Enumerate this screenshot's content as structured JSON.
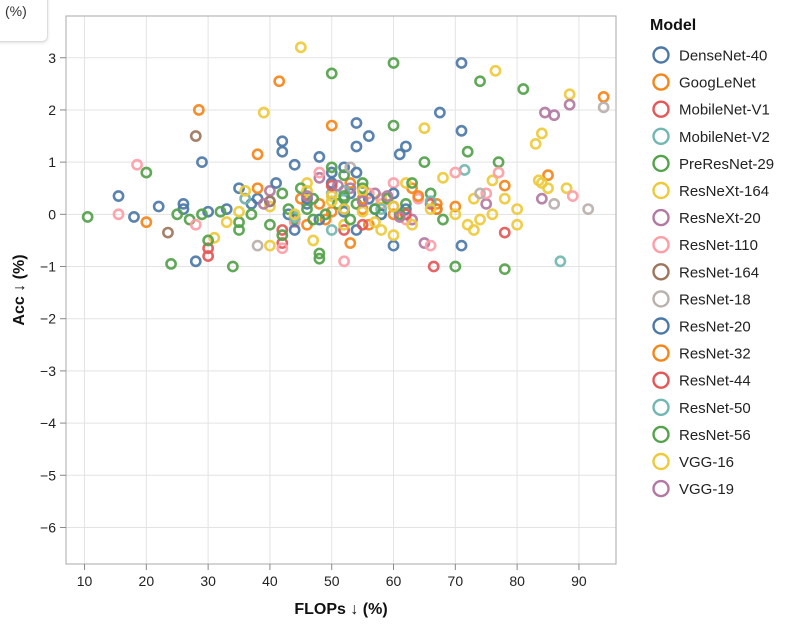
{
  "tooltip": {
    "text": "(%)"
  },
  "colors": {
    "blue": "#4c78a8",
    "orange": "#f58518",
    "red": "#e45756",
    "teal": "#72b7b2",
    "green": "#54a24b",
    "yellow": "#eeca3b",
    "purple": "#b279a2",
    "pink": "#ff9da6",
    "brown": "#9d755d",
    "gray": "#bab0ac"
  },
  "chart_data": {
    "type": "scatter",
    "title": "",
    "xlabel": "FLOPs ↓ (%)",
    "ylabel": "Acc ↓ (%)",
    "xlim": [
      7,
      96
    ],
    "ylim": [
      -6.7,
      3.8
    ],
    "x_ticks": [
      10,
      20,
      30,
      40,
      50,
      60,
      70,
      80,
      90
    ],
    "y_ticks": [
      3,
      2,
      1,
      0,
      -1,
      -2,
      -3,
      -4,
      -5,
      -6
    ],
    "y_tick_labels": [
      "3",
      "2",
      "1",
      "0",
      "−1",
      "−2",
      "−3",
      "−4",
      "−5",
      "−6"
    ],
    "grid": true,
    "legend": {
      "title": "Model",
      "placement": "right"
    },
    "series": [
      {
        "name": "DenseNet-40",
        "color": "#4c78a8",
        "points": [
          [
            15.5,
            0.35
          ],
          [
            22,
            0.15
          ],
          [
            26,
            0.1
          ],
          [
            29,
            1.0
          ],
          [
            30,
            0.05
          ],
          [
            35,
            0.5
          ],
          [
            38,
            0.3
          ],
          [
            42,
            1.4
          ],
          [
            42,
            1.2
          ],
          [
            44,
            0.95
          ],
          [
            48,
            1.1
          ],
          [
            50,
            0.8
          ],
          [
            52,
            0.9
          ],
          [
            53,
            0.4
          ],
          [
            54,
            1.75
          ],
          [
            54,
            1.3
          ],
          [
            56,
            1.5
          ],
          [
            60,
            -0.6
          ],
          [
            61,
            1.15
          ],
          [
            62,
            1.3
          ],
          [
            67.5,
            1.95
          ],
          [
            71,
            2.9
          ],
          [
            71,
            1.6
          ],
          [
            52,
            0.05
          ],
          [
            46,
            0.2
          ],
          [
            57,
            0.1
          ]
        ]
      },
      {
        "name": "GoogLeNet",
        "color": "#f58518",
        "points": [
          [
            20,
            -0.15
          ],
          [
            28.5,
            2.0
          ],
          [
            38,
            1.15
          ],
          [
            41.5,
            2.55
          ],
          [
            50,
            1.7
          ],
          [
            45,
            0.3
          ],
          [
            53,
            0.6
          ],
          [
            55,
            0.1
          ],
          [
            63,
            0.5
          ],
          [
            67,
            0.2
          ],
          [
            70,
            0.15
          ],
          [
            78,
            0.55
          ],
          [
            85,
            0.75
          ],
          [
            94,
            2.25
          ],
          [
            58,
            0.3
          ],
          [
            49,
            -0.1
          ]
        ]
      },
      {
        "name": "MobileNet-V1",
        "color": "#e45756",
        "points": [
          [
            30,
            -0.8
          ],
          [
            42,
            -0.55
          ],
          [
            52,
            -0.3
          ],
          [
            60,
            0.15
          ],
          [
            66.5,
            -1.0
          ],
          [
            78,
            -0.35
          ]
        ]
      },
      {
        "name": "MobileNet-V2",
        "color": "#72b7b2",
        "points": [
          [
            40,
            0.25
          ],
          [
            50,
            0.4
          ],
          [
            58,
            0.0
          ],
          [
            71.5,
            0.85
          ],
          [
            87,
            -0.9
          ]
        ]
      },
      {
        "name": "PreResNet-29",
        "color": "#54a24b",
        "points": [
          [
            10.5,
            -0.05
          ],
          [
            20,
            0.8
          ],
          [
            24,
            -0.95
          ],
          [
            27,
            -0.1
          ],
          [
            34,
            -1.0
          ],
          [
            35,
            -0.15
          ],
          [
            42,
            0.4
          ],
          [
            44,
            -0.1
          ],
          [
            48,
            -0.85
          ],
          [
            50,
            2.7
          ],
          [
            50,
            0.9
          ],
          [
            52,
            0.3
          ],
          [
            55,
            0.6
          ],
          [
            60,
            2.9
          ],
          [
            60,
            1.7
          ],
          [
            62,
            0.2
          ],
          [
            65,
            1.0
          ],
          [
            66,
            0.4
          ],
          [
            70,
            -1.0
          ],
          [
            72,
            1.2
          ],
          [
            74,
            2.55
          ],
          [
            77,
            1.0
          ],
          [
            78,
            -1.05
          ],
          [
            81,
            2.4
          ],
          [
            54,
            0.2
          ],
          [
            46,
            0.1
          ],
          [
            52,
            0.75
          ],
          [
            48,
            -0.75
          ]
        ]
      },
      {
        "name": "ResNeXt-164",
        "color": "#eeca3b",
        "points": [
          [
            31,
            -0.45
          ],
          [
            35,
            0.05
          ],
          [
            39,
            1.95
          ],
          [
            40,
            0.15
          ],
          [
            45,
            3.2
          ],
          [
            46,
            0.6
          ],
          [
            50,
            0.35
          ],
          [
            52,
            -0.2
          ],
          [
            55,
            0.05
          ],
          [
            58,
            0.3
          ],
          [
            60,
            -0.4
          ],
          [
            62,
            0.6
          ],
          [
            65,
            1.65
          ],
          [
            68,
            0.7
          ],
          [
            72,
            -0.2
          ],
          [
            73,
            0.3
          ],
          [
            76.5,
            2.75
          ],
          [
            76,
            0.0
          ],
          [
            80,
            0.1
          ],
          [
            80,
            -0.2
          ],
          [
            83,
            1.35
          ],
          [
            84,
            0.6
          ],
          [
            84,
            1.55
          ],
          [
            85,
            0.5
          ],
          [
            88,
            0.5
          ],
          [
            88.5,
            2.3
          ],
          [
            83.5,
            0.65
          ],
          [
            73,
            -0.3
          ],
          [
            76,
            0.65
          ]
        ]
      },
      {
        "name": "ResNeXt-20",
        "color": "#b279a2",
        "points": [
          [
            40,
            0.45
          ],
          [
            48,
            0.7
          ],
          [
            53,
            0.5
          ],
          [
            57,
            0.4
          ],
          [
            63,
            -0.1
          ],
          [
            65,
            -0.55
          ],
          [
            75,
            0.2
          ],
          [
            84,
            0.3
          ],
          [
            84.5,
            1.95
          ],
          [
            86,
            1.9
          ],
          [
            88.5,
            2.1
          ]
        ]
      },
      {
        "name": "ResNet-110",
        "color": "#ff9da6",
        "points": [
          [
            15.5,
            0.0
          ],
          [
            18.5,
            0.95
          ],
          [
            28,
            -0.2
          ],
          [
            36,
            0.3
          ],
          [
            42,
            -0.65
          ],
          [
            48,
            0.8
          ],
          [
            52,
            -0.9
          ],
          [
            56,
            0.4
          ],
          [
            60,
            0.6
          ],
          [
            62,
            -0.1
          ],
          [
            64,
            0.3
          ],
          [
            66,
            -0.6
          ],
          [
            70,
            0.8
          ],
          [
            75,
            0.4
          ],
          [
            77,
            0.8
          ],
          [
            89,
            0.35
          ],
          [
            44,
            -0.15
          ],
          [
            58,
            0.2
          ]
        ]
      },
      {
        "name": "ResNet-164",
        "color": "#9d755d",
        "points": [
          [
            23.5,
            -0.35
          ],
          [
            28,
            1.5
          ],
          [
            40,
            0.25
          ]
        ]
      },
      {
        "name": "ResNet-18",
        "color": "#bab0ac",
        "points": [
          [
            38,
            -0.6
          ],
          [
            53,
            0.9
          ],
          [
            74,
            0.4
          ],
          [
            86,
            0.2
          ],
          [
            91.5,
            0.1
          ],
          [
            94,
            2.05
          ]
        ]
      },
      {
        "name": "ResNet-20",
        "color": "#4c78a8",
        "points": [
          [
            18,
            -0.05
          ],
          [
            26,
            0.2
          ],
          [
            28,
            -0.9
          ],
          [
            33,
            0.1
          ],
          [
            37,
            0.2
          ],
          [
            41,
            0.6
          ],
          [
            43,
            0.0
          ],
          [
            46,
            0.3
          ],
          [
            48,
            -0.1
          ],
          [
            50,
            0.6
          ],
          [
            52,
            0.1
          ],
          [
            54,
            -0.3
          ],
          [
            56,
            0.3
          ],
          [
            58,
            0.0
          ],
          [
            60,
            0.4
          ],
          [
            62,
            0.1
          ],
          [
            67,
            0.1
          ],
          [
            71,
            -0.6
          ],
          [
            54,
            0.8
          ],
          [
            44,
            -0.3
          ]
        ]
      },
      {
        "name": "ResNet-32",
        "color": "#f58518",
        "points": [
          [
            38,
            0.5
          ],
          [
            46,
            -0.2
          ],
          [
            50,
            0.05
          ],
          [
            53,
            -0.55
          ],
          [
            55,
            0.3
          ],
          [
            60,
            0.0
          ],
          [
            64,
            0.35
          ],
          [
            67,
            0.1
          ],
          [
            48,
            0.2
          ],
          [
            56,
            -0.2
          ]
        ]
      },
      {
        "name": "ResNet-44",
        "color": "#e45756",
        "points": [
          [
            30,
            -0.65
          ],
          [
            42,
            -0.3
          ],
          [
            50,
            0.55
          ],
          [
            55,
            -0.2
          ],
          [
            62,
            0.0
          ],
          [
            66,
            0.2
          ]
        ]
      },
      {
        "name": "ResNet-50",
        "color": "#72b7b2",
        "points": [
          [
            36,
            0.3
          ],
          [
            44,
            -0.05
          ],
          [
            50,
            -0.3
          ],
          [
            52,
            0.45
          ],
          [
            58,
            0.1
          ],
          [
            66,
            0.25
          ]
        ]
      },
      {
        "name": "ResNet-56",
        "color": "#54a24b",
        "points": [
          [
            25,
            0.0
          ],
          [
            29,
            0.0
          ],
          [
            30,
            -0.5
          ],
          [
            32,
            0.05
          ],
          [
            35,
            -0.3
          ],
          [
            37,
            0.0
          ],
          [
            40,
            -0.2
          ],
          [
            43,
            0.1
          ],
          [
            45,
            0.5
          ],
          [
            47,
            -0.1
          ],
          [
            49,
            0.0
          ],
          [
            51,
            0.2
          ],
          [
            53,
            -0.1
          ],
          [
            55,
            0.5
          ],
          [
            57,
            0.1
          ],
          [
            59,
            0.3
          ],
          [
            61,
            0.0
          ],
          [
            63,
            0.6
          ],
          [
            68,
            -0.1
          ],
          [
            52,
            0.35
          ],
          [
            47,
            0.3
          ],
          [
            42,
            -0.4
          ]
        ]
      },
      {
        "name": "VGG-16",
        "color": "#eeca3b",
        "points": [
          [
            33,
            -0.15
          ],
          [
            36,
            0.45
          ],
          [
            40,
            -0.6
          ],
          [
            44,
            0.0
          ],
          [
            47,
            -0.5
          ],
          [
            50,
            0.25
          ],
          [
            52,
            0.1
          ],
          [
            55,
            0.45
          ],
          [
            57,
            -0.15
          ],
          [
            60,
            0.15
          ],
          [
            63,
            -0.2
          ],
          [
            66,
            0.1
          ],
          [
            70,
            0.0
          ],
          [
            74,
            -0.1
          ],
          [
            78,
            0.3
          ],
          [
            46,
            0.45
          ],
          [
            58,
            -0.3
          ]
        ]
      },
      {
        "name": "VGG-19",
        "color": "#b279a2",
        "points": [
          [
            39,
            0.2
          ],
          [
            46,
            0.35
          ],
          [
            51,
            0.55
          ],
          [
            55,
            0.25
          ],
          [
            59,
            0.35
          ],
          [
            61,
            -0.05
          ]
        ]
      }
    ]
  }
}
